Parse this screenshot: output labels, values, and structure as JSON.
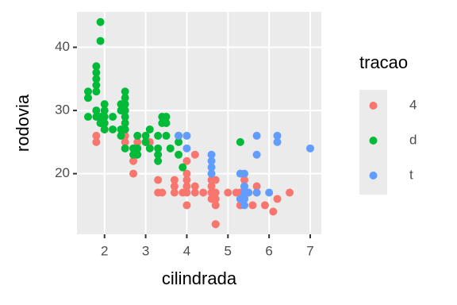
{
  "chart_data": {
    "type": "scatter",
    "x_label": "cilindrada",
    "y_label": "rodovia",
    "legend_title": "tracao",
    "legend_position": "right",
    "grid": true,
    "xlim": [
      1.33,
      7.27
    ],
    "ylim": [
      10.4,
      45.6
    ],
    "xticks": [
      2,
      3,
      4,
      5,
      6,
      7
    ],
    "yticks": [
      20,
      30,
      40
    ],
    "series": [
      {
        "name": "4",
        "color": "#F8766D",
        "x": [
          1.8,
          1.8,
          2.0,
          2.0,
          2.5,
          2.5,
          2.7,
          2.7,
          2.8,
          3.0,
          3.1,
          3.3,
          3.3,
          3.4,
          3.7,
          3.7,
          3.7,
          3.9,
          4.0,
          4.0,
          4.0,
          4.0,
          4.0,
          4.0,
          4.2,
          4.2,
          4.2,
          4.4,
          4.6,
          4.6,
          4.6,
          4.6,
          4.7,
          4.7,
          4.7,
          4.7,
          4.7,
          4.7,
          5.0,
          5.2,
          5.3,
          5.3,
          5.4,
          5.4,
          5.4,
          5.5,
          5.6,
          5.7,
          5.7,
          5.9,
          6.1,
          6.2,
          6.5
        ],
        "values": [
          26,
          25,
          28,
          27,
          25,
          26,
          20,
          22,
          25,
          25,
          25,
          17,
          19,
          17,
          18,
          19,
          17,
          17,
          20,
          19,
          17,
          15,
          18,
          22,
          23,
          18,
          17,
          17,
          19,
          17,
          16,
          18,
          19,
          17,
          15,
          12,
          12,
          16,
          17,
          17,
          17,
          15,
          19,
          18,
          16,
          17,
          15,
          18,
          17,
          15,
          14,
          16,
          17
        ]
      },
      {
        "name": "d",
        "color": "#00BA38",
        "x": [
          1.6,
          1.6,
          1.6,
          1.6,
          1.8,
          1.8,
          1.8,
          1.8,
          1.8,
          1.8,
          1.8,
          1.9,
          1.9,
          1.9,
          1.9,
          2.0,
          2.0,
          2.0,
          2.0,
          2.0,
          2.2,
          2.2,
          2.4,
          2.4,
          2.4,
          2.4,
          2.5,
          2.5,
          2.5,
          2.5,
          2.5,
          2.5,
          2.5,
          2.5,
          2.7,
          2.7,
          2.8,
          2.8,
          2.8,
          3.0,
          3.0,
          3.1,
          3.1,
          3.3,
          3.3,
          3.3,
          3.3,
          3.4,
          3.4,
          3.5,
          3.5,
          3.5,
          3.6,
          3.8,
          3.8,
          3.8,
          3.9,
          5.3
        ],
        "values": [
          33,
          32,
          29,
          32,
          34,
          36,
          37,
          35,
          33,
          30,
          29,
          44,
          41,
          29,
          28,
          31,
          30,
          29,
          28,
          27,
          27,
          29,
          30,
          31,
          27,
          26,
          32,
          33,
          31,
          29,
          28,
          27,
          24,
          30,
          24,
          23,
          24,
          26,
          23,
          26,
          25,
          24,
          27,
          24,
          22,
          23,
          26,
          28,
          29,
          29,
          28,
          26,
          24,
          26,
          23,
          25,
          21,
          25
        ]
      },
      {
        "name": "t",
        "color": "#619CFF",
        "x": [
          3.8,
          4.0,
          4.0,
          4.6,
          4.6,
          4.6,
          4.6,
          5.3,
          5.3,
          5.4,
          5.4,
          5.4,
          5.4,
          5.4,
          5.5,
          5.7,
          5.7,
          5.7,
          6.0,
          6.2,
          6.2,
          7.0
        ],
        "values": [
          26,
          24,
          26,
          23,
          22,
          21,
          20,
          20,
          16,
          20,
          18,
          17,
          16,
          15,
          17,
          26,
          23,
          17,
          17,
          26,
          25,
          24
        ]
      }
    ]
  }
}
